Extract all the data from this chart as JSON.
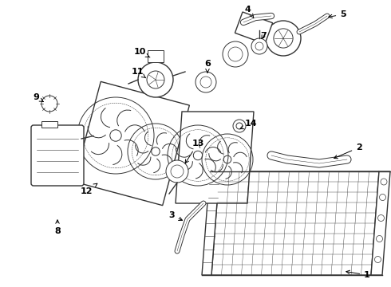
{
  "background_color": "#ffffff",
  "line_color": "#333333",
  "label_color": "#000000",
  "label_fontsize": 8,
  "fig_width": 4.9,
  "fig_height": 3.6,
  "dpi": 100
}
